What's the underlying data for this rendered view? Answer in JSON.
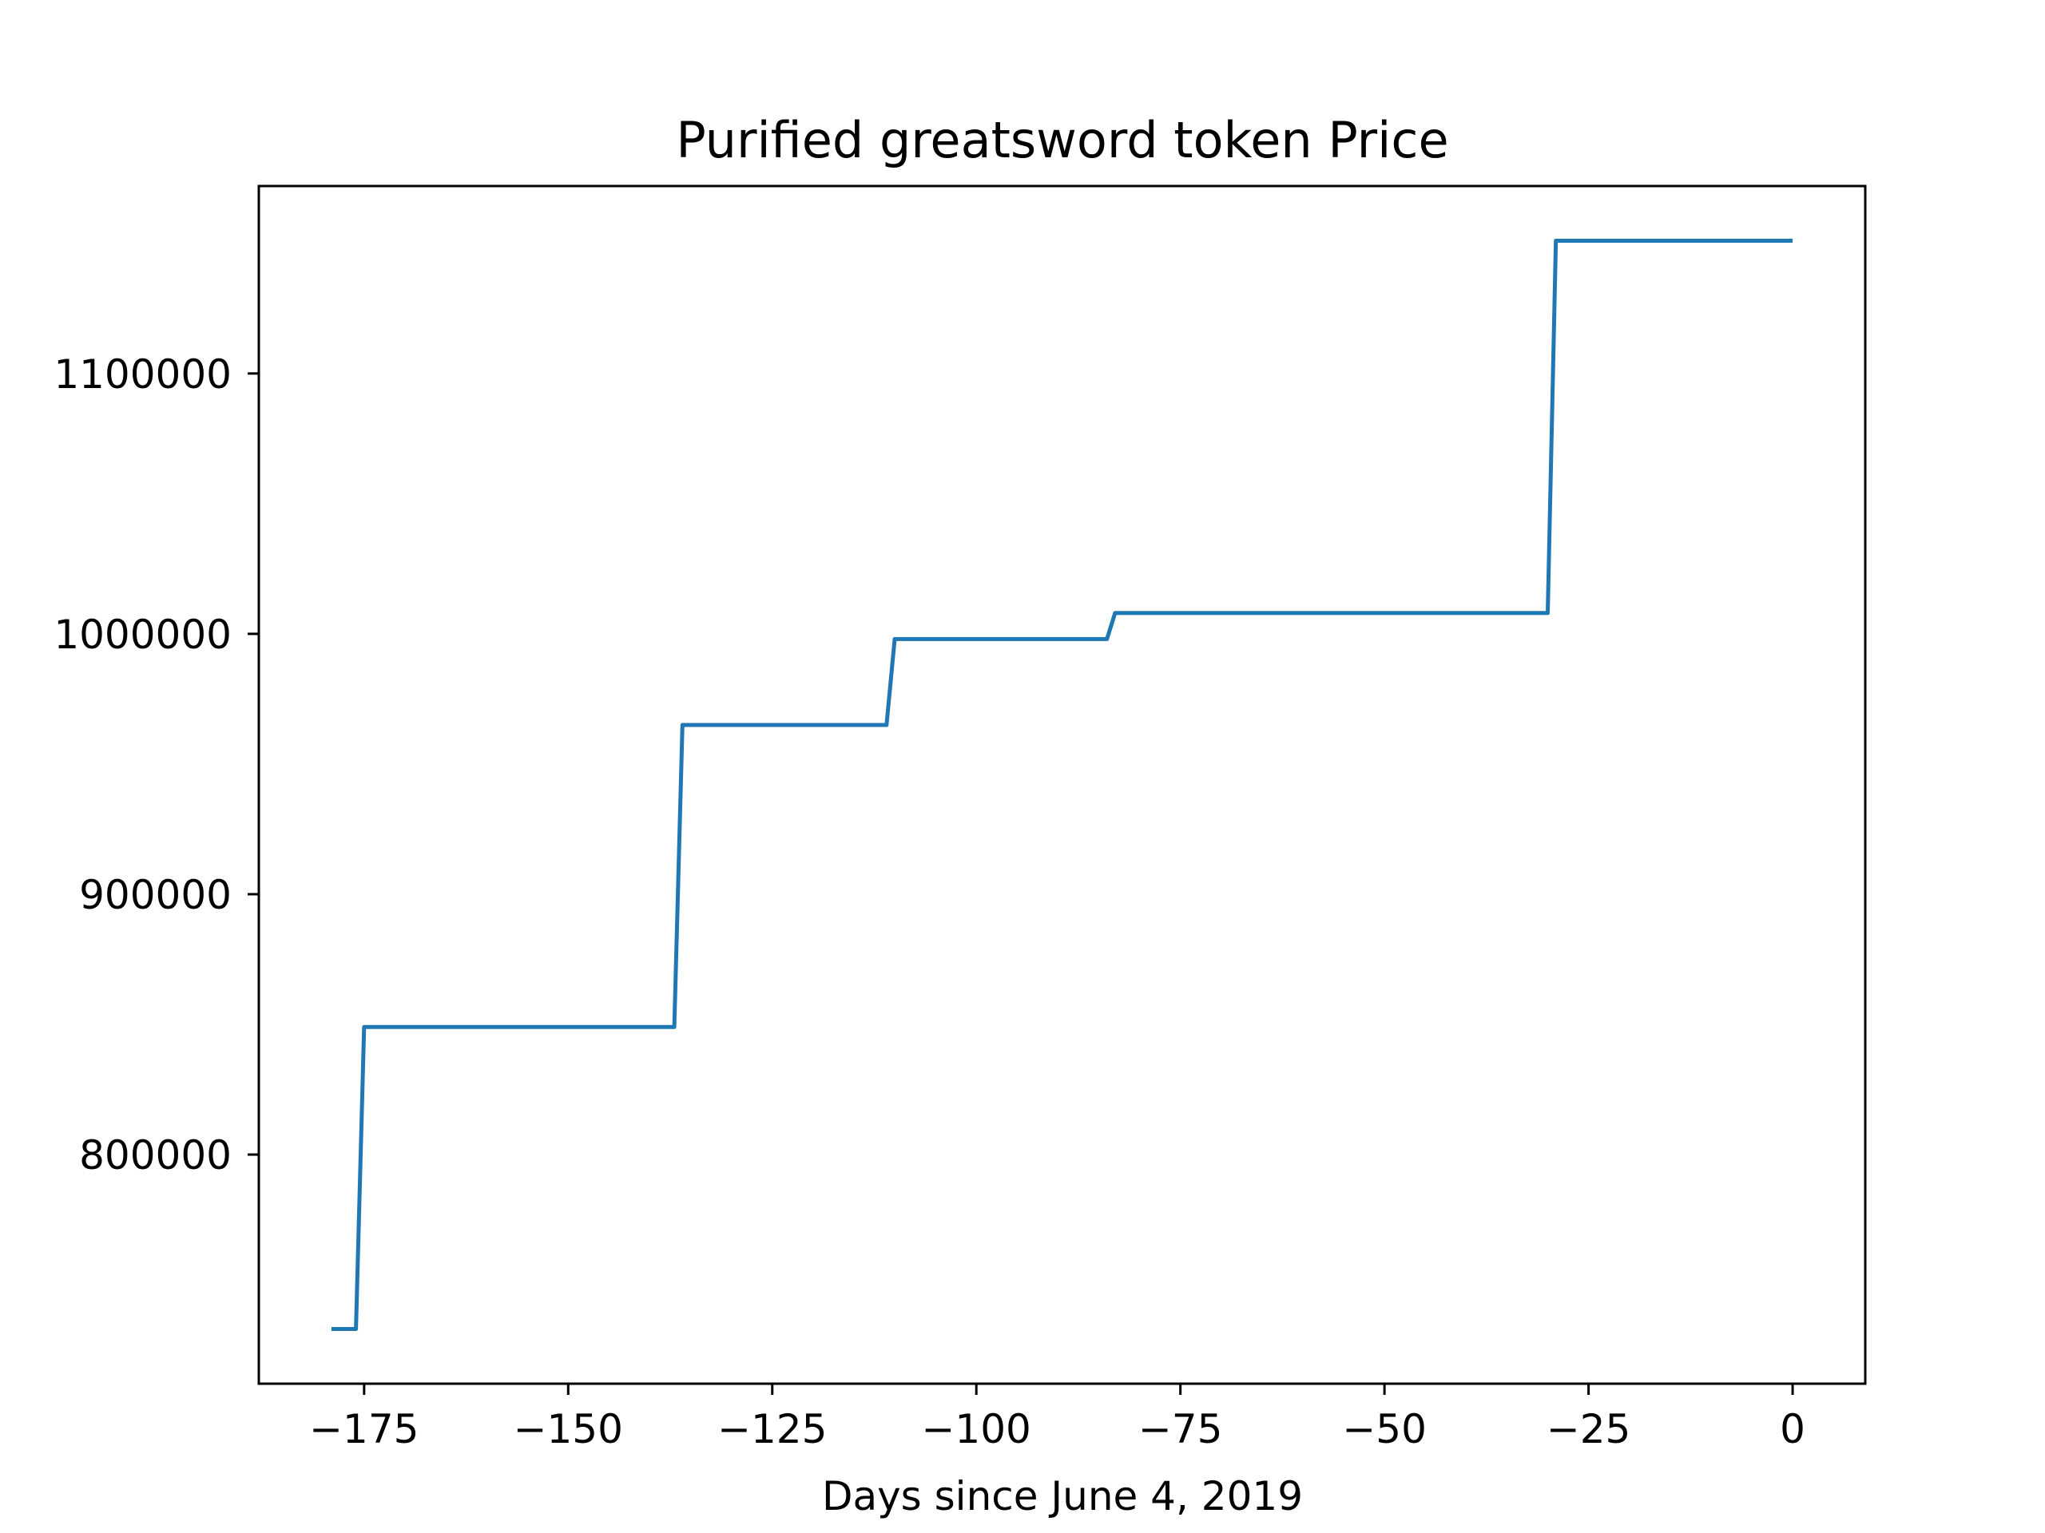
{
  "chart_data": {
    "type": "line",
    "title": "Purified greatsword token Price",
    "xlabel": "Days since June 4, 2019",
    "ylabel": "",
    "xlim": [
      -187.9,
      8.9
    ],
    "ylim": [
      712000,
      1172000
    ],
    "x_ticks": [
      -175,
      -150,
      -125,
      -100,
      -75,
      -50,
      -25,
      0
    ],
    "x_tick_labels": [
      "−175",
      "−150",
      "−125",
      "−100",
      "−75",
      "−50",
      "−25",
      "0"
    ],
    "y_ticks": [
      800000,
      900000,
      1000000,
      1100000
    ],
    "y_tick_labels": [
      "800000",
      "900000",
      "1000000",
      "1100000"
    ],
    "grid": false,
    "legend": "none",
    "series": [
      {
        "color": "#1f77b4",
        "x": [
          -179,
          -176,
          -175,
          -137,
          -136,
          -111,
          -110,
          -84,
          -83,
          -30,
          -29,
          0
        ],
        "y": [
          733000,
          733000,
          849000,
          849000,
          965000,
          965000,
          998000,
          998000,
          1008000,
          1008000,
          1151000,
          1151000
        ]
      }
    ]
  }
}
